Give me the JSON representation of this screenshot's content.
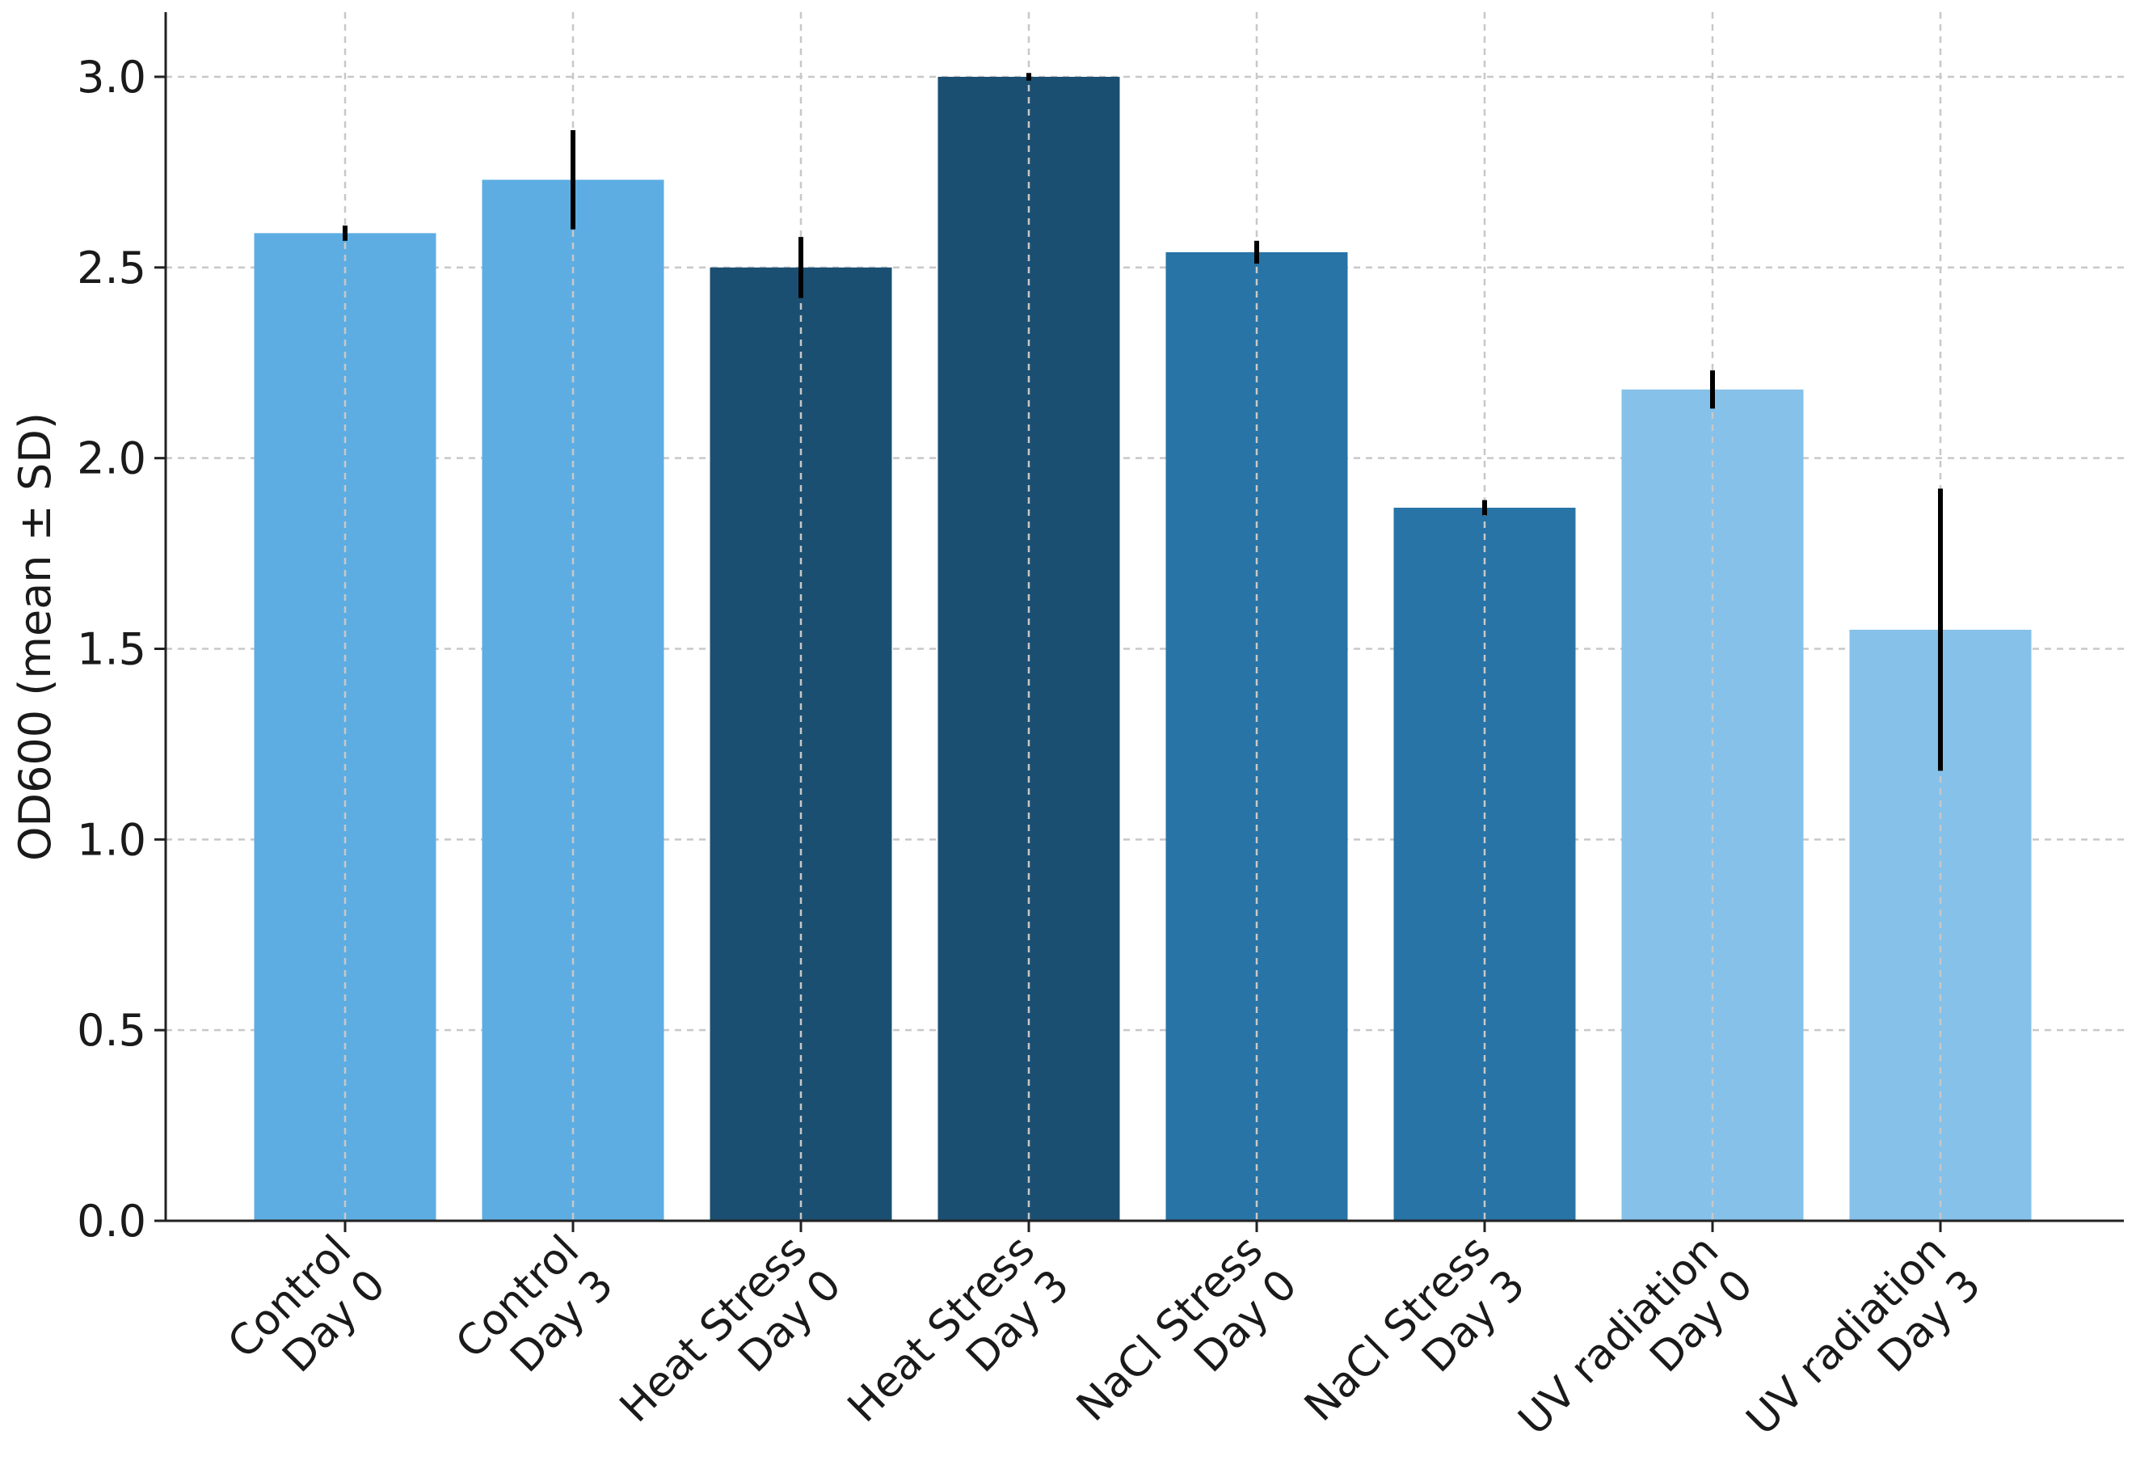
{
  "chart_data": {
    "type": "bar",
    "title": "",
    "xlabel": "",
    "ylabel": "OD600 (mean ± SD)",
    "ylim": [
      0,
      3.15
    ],
    "yticks": [
      "0.0",
      "0.5",
      "1.0",
      "1.5",
      "2.0",
      "2.5",
      "3.0"
    ],
    "grid": true,
    "categories": [
      [
        "Control",
        "Day 0"
      ],
      [
        "Control",
        "Day 3"
      ],
      [
        "Heat Stress",
        "Day 0"
      ],
      [
        "Heat Stress",
        "Day 3"
      ],
      [
        "NaCl Stress",
        "Day 0"
      ],
      [
        "NaCl Stress",
        "Day 3"
      ],
      [
        "UV radiation",
        "Day 0"
      ],
      [
        "UV radiation",
        "Day 3"
      ]
    ],
    "values": [
      2.59,
      2.73,
      2.5,
      3.0,
      2.54,
      1.87,
      2.18,
      1.55
    ],
    "errors": [
      0.02,
      0.13,
      0.08,
      0.01,
      0.03,
      0.02,
      0.05,
      0.37
    ],
    "colors": [
      "#5dade2",
      "#5dade2",
      "#1b4f72",
      "#1b4f72",
      "#2874a6",
      "#2874a6",
      "#85c1e9",
      "#85c1e9"
    ]
  }
}
